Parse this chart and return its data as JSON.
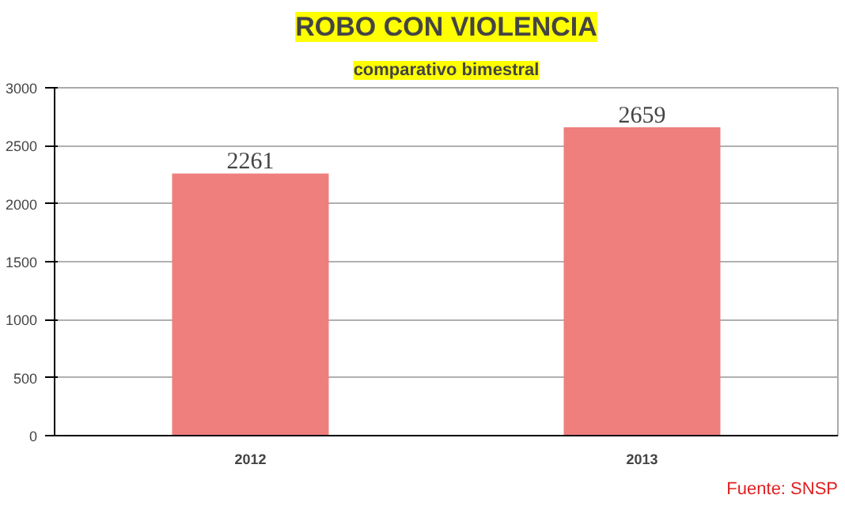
{
  "chart_data": {
    "type": "bar",
    "title": "ROBO CON VIOLENCIA",
    "subtitle": "comparativo bimestral",
    "categories": [
      "2012",
      "2013"
    ],
    "values": [
      2261,
      2659
    ],
    "color": "#ee7f7d",
    "ylim": [
      0,
      3000
    ],
    "yticks": [
      0,
      500,
      1000,
      1500,
      2000,
      2500,
      3000
    ],
    "grid": "y",
    "data_labels": true,
    "annotations": [
      "Fuente: SNSP"
    ]
  }
}
